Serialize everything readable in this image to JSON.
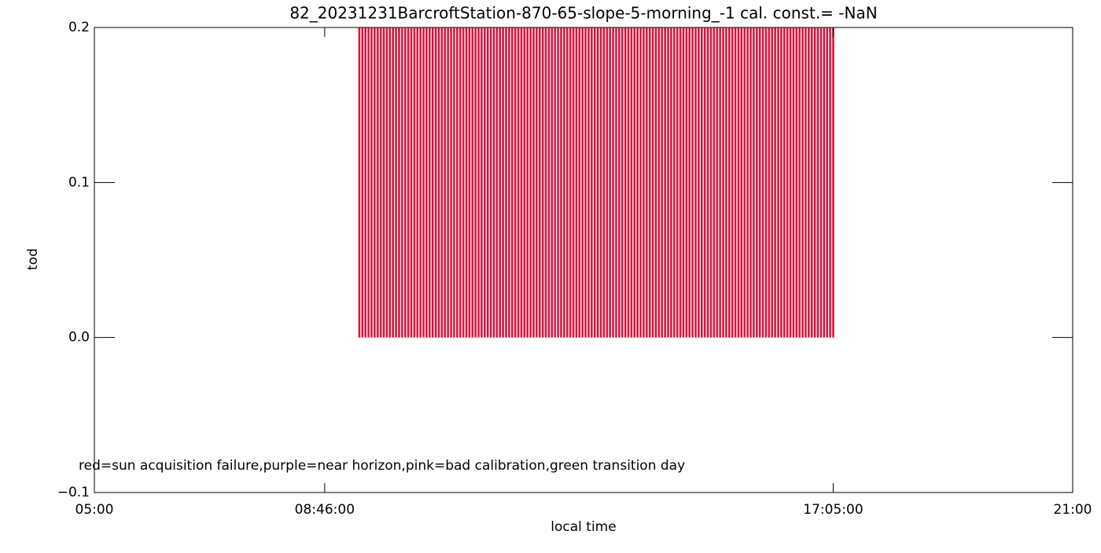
{
  "chart_data": {
    "type": "bar",
    "title": "82_20231231BarcroftStation-870-65-slope-5-morning_-1 cal. const.= -NaN",
    "x_label": "local time",
    "y_label": "tod",
    "annotation": "red=sun acquisition failure,purple=near horizon,pink=bad calibration,green transition day",
    "x": [
      560,
      563,
      566,
      569,
      572,
      575,
      578,
      581,
      584,
      587,
      590,
      593,
      596,
      599,
      602,
      605,
      608,
      611,
      614,
      617,
      620,
      623,
      626,
      629,
      632,
      635,
      638,
      641,
      644,
      647,
      650,
      653,
      656,
      659,
      662,
      665,
      668,
      671,
      674,
      677,
      680,
      683,
      686,
      689,
      692,
      695,
      698,
      701,
      704,
      707,
      710,
      713,
      716,
      719,
      722,
      725,
      728,
      731,
      734,
      737,
      740,
      743,
      746,
      749,
      752,
      755,
      758,
      761,
      764,
      767,
      770,
      773,
      776,
      779,
      782,
      785,
      788,
      791,
      794,
      797,
      800,
      803,
      806,
      809,
      812,
      815,
      818,
      821,
      824,
      827,
      830,
      833,
      836,
      839,
      842,
      845,
      848,
      851,
      854,
      857,
      860,
      863,
      866,
      869,
      872,
      875,
      878,
      881,
      884,
      887,
      890,
      893,
      896,
      899,
      902,
      905,
      908,
      911,
      914,
      917,
      920,
      923,
      926,
      929,
      932,
      935,
      938,
      941,
      944,
      947,
      950,
      953,
      956,
      959,
      962,
      965,
      968,
      971,
      974,
      977,
      980,
      983,
      986,
      989,
      992,
      995,
      998,
      1001,
      1004,
      1007,
      1010,
      1013,
      1016,
      1019,
      1022,
      1025
    ],
    "values": [
      0.2,
      0.2,
      0.2,
      0.2,
      0.2,
      0.2,
      0.2,
      0.2,
      0.2,
      0.2,
      0.2,
      0.2,
      0.2,
      0.2,
      0.2,
      0.2,
      0.2,
      0.2,
      0.2,
      0.2,
      0.2,
      0.2,
      0.2,
      0.2,
      0.2,
      0.2,
      0.2,
      0.2,
      0.2,
      0.2,
      0.2,
      0.2,
      0.2,
      0.2,
      0.2,
      0.2,
      0.2,
      0.2,
      0.2,
      0.2,
      0.2,
      0.2,
      0.2,
      0.2,
      0.2,
      0.2,
      0.2,
      0.2,
      0.2,
      0.2,
      0.2,
      0.2,
      0.2,
      0.2,
      0.2,
      0.2,
      0.2,
      0.2,
      0.2,
      0.2,
      0.2,
      0.2,
      0.2,
      0.2,
      0.2,
      0.2,
      0.2,
      0.2,
      0.2,
      0.2,
      0.2,
      0.2,
      0.2,
      0.2,
      0.2,
      0.2,
      0.2,
      0.2,
      0.2,
      0.2,
      0.2,
      0.2,
      0.2,
      0.2,
      0.2,
      0.2,
      0.2,
      0.2,
      0.2,
      0.2,
      0.2,
      0.2,
      0.2,
      0.2,
      0.2,
      0.2,
      0.2,
      0.2,
      0.2,
      0.2,
      0.2,
      0.2,
      0.2,
      0.2,
      0.2,
      0.2,
      0.2,
      0.2,
      0.2,
      0.2,
      0.2,
      0.2,
      0.2,
      0.2,
      0.2,
      0.2,
      0.2,
      0.2,
      0.2,
      0.2,
      0.2,
      0.2,
      0.2,
      0.2,
      0.2,
      0.2,
      0.2,
      0.2,
      0.2,
      0.2,
      0.2,
      0.2,
      0.2,
      0.2,
      0.2,
      0.2,
      0.2,
      0.2,
      0.2,
      0.2,
      0.2,
      0.2,
      0.2,
      0.2,
      0.2,
      0.2,
      0.2,
      0.2,
      0.2,
      0.2,
      0.2,
      0.2,
      0.2,
      0.2,
      0.2,
      0.2
    ],
    "color": "#dc143c",
    "xlim": [
      300,
      1260
    ],
    "xticks": [
      {
        "value": 300,
        "label": "05:00"
      },
      {
        "value": 526,
        "label": "08:46:00"
      },
      {
        "value": 1025,
        "label": "17:05:00"
      },
      {
        "value": 1260,
        "label": "21:00"
      }
    ],
    "ylim": [
      -0.1,
      0.2
    ],
    "yticks": [
      {
        "value": -0.1,
        "label": "−0.1"
      },
      {
        "value": 0,
        "label": "0.0"
      },
      {
        "value": 0.1,
        "label": "0.1"
      },
      {
        "value": 0.2,
        "label": "0.2"
      }
    ]
  }
}
